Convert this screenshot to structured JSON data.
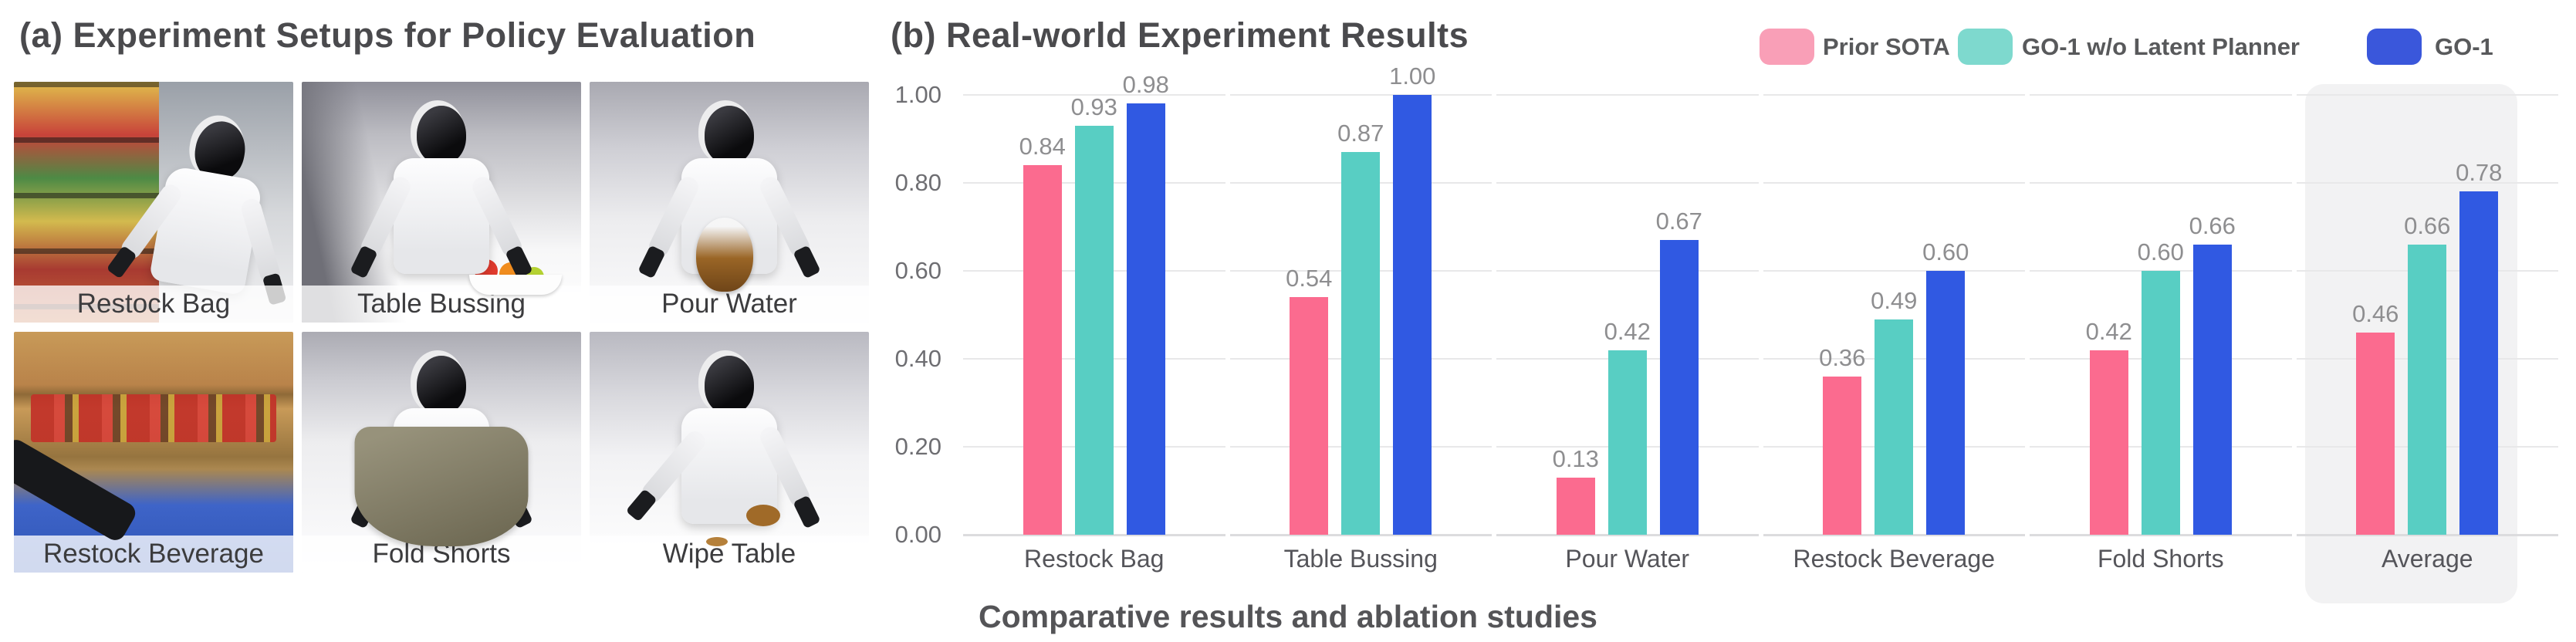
{
  "figure": {
    "panel_a": {
      "title": "(a) Experiment Setups for Policy Evaluation",
      "photos": [
        {
          "label": "Restock Bag",
          "scene": "restock-bag",
          "robot": true
        },
        {
          "label": "Table Bussing",
          "scene": "table-bussing",
          "robot": true
        },
        {
          "label": "Pour Water",
          "scene": "pour-water",
          "robot": true
        },
        {
          "label": "Restock Beverage",
          "scene": "restock-beverage",
          "robot": false
        },
        {
          "label": "Fold Shorts",
          "scene": "fold-shorts",
          "robot": true
        },
        {
          "label": "Wipe Table",
          "scene": "wipe-table",
          "robot": true
        }
      ]
    },
    "panel_b": {
      "title": "(b) Real-world Experiment Results",
      "caption": "Comparative results and ablation studies"
    }
  },
  "chart_data": {
    "type": "bar",
    "title": "(b) Real-world Experiment Results",
    "categories": [
      "Restock Bag",
      "Table Bussing",
      "Pour Water",
      "Restock Beverage",
      "Fold Shorts",
      "Average"
    ],
    "series": [
      {
        "name": "Prior SOTA",
        "color": "#FB6B8F",
        "legend_color": "#F99FB7",
        "values": [
          0.84,
          0.54,
          0.13,
          0.36,
          0.42,
          0.46
        ]
      },
      {
        "name": "GO-1 w/o Latent Planner",
        "color": "#58CEC3",
        "legend_color": "#7ED9CE",
        "values": [
          0.93,
          0.87,
          0.42,
          0.49,
          0.6,
          0.66
        ]
      },
      {
        "name": "GO-1",
        "color": "#3059E2",
        "legend_color": "#3A57DB",
        "values": [
          0.98,
          1.0,
          0.67,
          0.6,
          0.66,
          0.78
        ]
      }
    ],
    "ylim": [
      0,
      1.0
    ],
    "yticks": [
      0.0,
      0.2,
      0.4,
      0.6,
      0.8,
      1.0
    ],
    "grid": true,
    "value_labels": true,
    "legend_position": "top-right",
    "highlighted_category": "Average",
    "highlight_color": "#f2f2f3",
    "gridline_color": "#e8e8e9",
    "caption": "Comparative results and ablation studies",
    "xlabel": "",
    "ylabel": ""
  }
}
